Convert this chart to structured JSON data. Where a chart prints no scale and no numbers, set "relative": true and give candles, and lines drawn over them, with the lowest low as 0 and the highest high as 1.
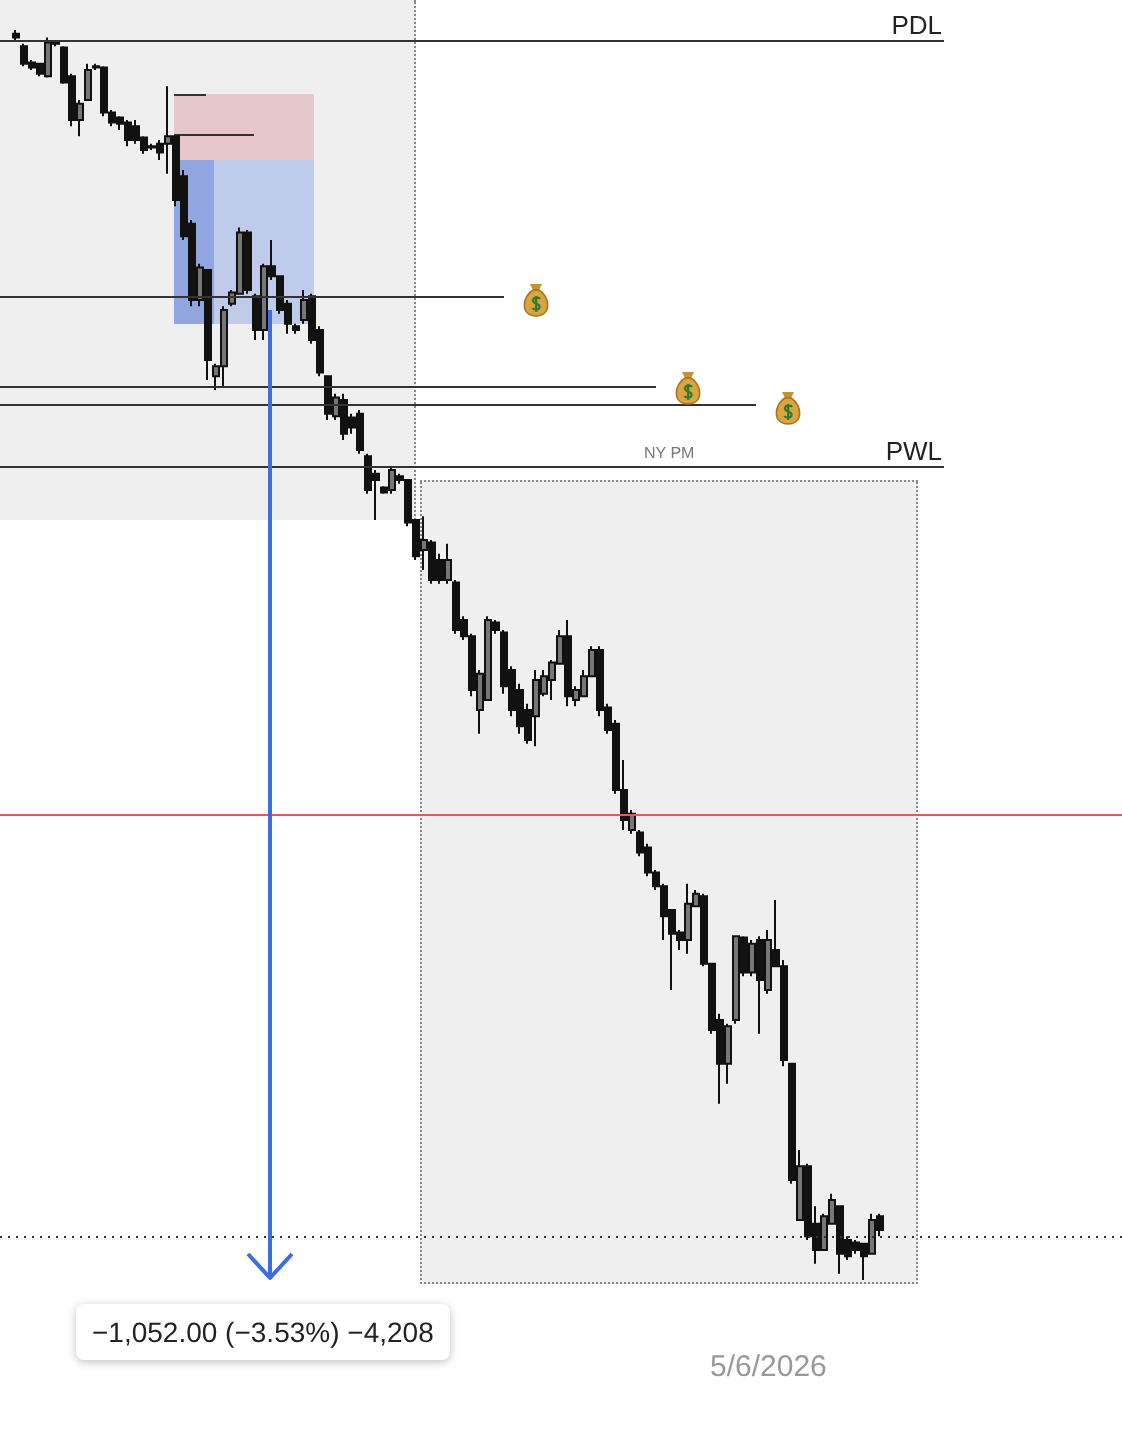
{
  "chart_data": {
    "type": "candlestick",
    "relative": true,
    "categories": [
      null,
      null,
      null,
      null,
      null,
      null,
      null,
      null,
      null,
      null,
      null,
      null,
      null,
      null,
      null,
      null,
      null,
      null,
      null,
      null,
      null,
      null,
      null,
      null,
      null,
      null,
      null,
      null,
      null,
      null,
      null,
      null,
      null,
      null,
      null,
      null,
      null,
      null,
      null,
      null,
      null,
      null,
      null,
      null,
      null,
      null,
      null,
      null,
      null,
      null,
      null,
      null,
      null,
      null,
      null,
      null,
      null,
      null,
      null,
      null,
      null,
      null,
      null,
      null,
      null,
      null,
      null,
      null,
      null,
      null,
      null,
      null,
      null,
      null,
      null,
      null,
      null,
      null,
      null,
      null,
      null,
      null,
      null,
      null,
      null,
      null,
      null,
      null,
      null,
      null,
      null,
      null,
      null,
      null,
      null,
      null,
      null,
      null,
      null,
      null,
      null,
      null,
      null,
      null,
      null,
      null,
      null,
      null,
      null
    ],
    "ohlc": [
      [
        0.997,
        1,
        0.992,
        0.994
      ],
      [
        0.987,
        0.989,
        0.971,
        0.973
      ],
      [
        0.974,
        0.976,
        0.968,
        0.97
      ],
      [
        0.973,
        0.973,
        0.963,
        0.965
      ],
      [
        0.963,
        0.994,
        0.962,
        0.99
      ],
      [
        0.99,
        0.992,
        0.987,
        0.989
      ],
      [
        0.986,
        0.987,
        0.957,
        0.958
      ],
      [
        0.963,
        0.965,
        0.923,
        0.928
      ],
      [
        0.928,
        0.944,
        0.915,
        0.941
      ],
      [
        0.944,
        0.973,
        0.944,
        0.968
      ],
      [
        0.971,
        0.973,
        0.968,
        0.97
      ],
      [
        0.97,
        0.971,
        0.931,
        0.934
      ],
      [
        0.934,
        0.936,
        0.923,
        0.926
      ],
      [
        0.93,
        0.931,
        0.92,
        0.925
      ],
      [
        0.926,
        0.928,
        0.907,
        0.912
      ],
      [
        0.923,
        0.928,
        0.909,
        0.912
      ],
      [
        0.914,
        0.915,
        0.901,
        0.904
      ],
      [
        0.907,
        0.909,
        0.904,
        0.906
      ],
      [
        0.909,
        0.912,
        0.896,
        0.902
      ],
      [
        0.909,
        0.955,
        0.885,
        0.915
      ],
      [
        0.915,
        0.915,
        0.859,
        0.864
      ],
      [
        0.883,
        0.888,
        0.832,
        0.835
      ],
      [
        0.845,
        0.848,
        0.779,
        0.784
      ],
      [
        0.784,
        0.813,
        0.779,
        0.81
      ],
      [
        0.808,
        0.808,
        0.72,
        0.736
      ],
      [
        0.723,
        0.733,
        0.712,
        0.731
      ],
      [
        0.731,
        0.779,
        0.715,
        0.776
      ],
      [
        0.781,
        0.792,
        0.779,
        0.79
      ],
      [
        0.789,
        0.842,
        0.789,
        0.838
      ],
      [
        0.838,
        0.84,
        0.789,
        0.792
      ],
      [
        0.787,
        0.789,
        0.752,
        0.76
      ],
      [
        0.76,
        0.813,
        0.752,
        0.811
      ],
      [
        0.811,
        0.832,
        0.8,
        0.803
      ],
      [
        0.803,
        0.803,
        0.773,
        0.776
      ],
      [
        0.781,
        0.784,
        0.757,
        0.765
      ],
      [
        0.763,
        0.765,
        0.757,
        0.76
      ],
      [
        0.768,
        0.792,
        0.765,
        0.784
      ],
      [
        0.787,
        0.789,
        0.749,
        0.752
      ],
      [
        0.76,
        0.763,
        0.723,
        0.726
      ],
      [
        0.723,
        0.723,
        0.688,
        0.693
      ],
      [
        0.691,
        0.709,
        0.688,
        0.706
      ],
      [
        0.704,
        0.709,
        0.672,
        0.677
      ],
      [
        0.69,
        0.693,
        0.677,
        0.682
      ],
      [
        0.693,
        0.696,
        0.661,
        0.664
      ],
      [
        0.659,
        0.661,
        0.629,
        0.632
      ],
      [
        0.645,
        0.648,
        0.608,
        0.64
      ],
      [
        0.634,
        0.635,
        0.629,
        0.63
      ],
      [
        0.632,
        0.651,
        0.629,
        0.648
      ],
      [
        0.643,
        0.645,
        0.637,
        0.64
      ],
      [
        0.64,
        0.64,
        0.603,
        0.606
      ],
      [
        0.608,
        0.608,
        0.576,
        0.579
      ],
      [
        0.584,
        0.611,
        0.568,
        0.592
      ],
      [
        0.59,
        0.592,
        0.557,
        0.56
      ],
      [
        0.576,
        0.581,
        0.557,
        0.56
      ],
      [
        0.56,
        0.589,
        0.557,
        0.576
      ],
      [
        0.558,
        0.56,
        0.517,
        0.52
      ],
      [
        0.528,
        0.531,
        0.512,
        0.515
      ],
      [
        0.515,
        0.517,
        0.467,
        0.472
      ],
      [
        0.456,
        0.488,
        0.437,
        0.485
      ],
      [
        0.464,
        0.531,
        0.464,
        0.528
      ],
      [
        0.526,
        0.528,
        0.517,
        0.52
      ],
      [
        0.518,
        0.52,
        0.469,
        0.475
      ],
      [
        0.488,
        0.491,
        0.451,
        0.456
      ],
      [
        0.472,
        0.477,
        0.437,
        0.443
      ],
      [
        0.456,
        0.461,
        0.429,
        0.432
      ],
      [
        0.451,
        0.488,
        0.427,
        0.48
      ],
      [
        0.469,
        0.488,
        0.467,
        0.483
      ],
      [
        0.48,
        0.496,
        0.464,
        0.494
      ],
      [
        0.493,
        0.52,
        0.493,
        0.515
      ],
      [
        0.515,
        0.528,
        0.459,
        0.467
      ],
      [
        0.464,
        0.475,
        0.459,
        0.472
      ],
      [
        0.467,
        0.488,
        0.467,
        0.483
      ],
      [
        0.483,
        0.507,
        0.483,
        0.504
      ],
      [
        0.504,
        0.507,
        0.451,
        0.456
      ],
      [
        0.458,
        0.461,
        0.437,
        0.44
      ],
      [
        0.445,
        0.448,
        0.389,
        0.392
      ],
      [
        0.392,
        0.416,
        0.36,
        0.368
      ],
      [
        0.36,
        0.376,
        0.357,
        0.373
      ],
      [
        0.358,
        0.36,
        0.339,
        0.342
      ],
      [
        0.346,
        0.349,
        0.323,
        0.326
      ],
      [
        0.326,
        0.328,
        0.312,
        0.315
      ],
      [
        0.315,
        0.317,
        0.272,
        0.291
      ],
      [
        0.296,
        0.296,
        0.232,
        0.277
      ],
      [
        0.278,
        0.28,
        0.264,
        0.272
      ],
      [
        0.272,
        0.317,
        0.261,
        0.301
      ],
      [
        0.299,
        0.312,
        0.299,
        0.309
      ],
      [
        0.307,
        0.309,
        0.251,
        0.253
      ],
      [
        0.253,
        0.253,
        0.197,
        0.2
      ],
      [
        0.208,
        0.213,
        0.141,
        0.173
      ],
      [
        0.173,
        0.205,
        0.157,
        0.203
      ],
      [
        0.208,
        0.275,
        0.205,
        0.275
      ],
      [
        0.274,
        0.275,
        0.243,
        0.246
      ],
      [
        0.246,
        0.272,
        0.243,
        0.269
      ],
      [
        0.272,
        0.275,
        0.197,
        0.24
      ],
      [
        0.232,
        0.28,
        0.229,
        0.272
      ],
      [
        0.264,
        0.304,
        0.251,
        0.251
      ],
      [
        0.251,
        0.256,
        0.171,
        0.176
      ],
      [
        0.173,
        0.173,
        0.077,
        0.08
      ],
      [
        0.048,
        0.104,
        0.048,
        0.091
      ],
      [
        0.091,
        0.093,
        0.032,
        0.035
      ],
      [
        0.045,
        0.059,
        0.013,
        0.024
      ],
      [
        0.024,
        0.053,
        0.024,
        0.051
      ],
      [
        0.045,
        0.069,
        0.045,
        0.064
      ],
      [
        0.059,
        0.059,
        0.005,
        0.021
      ],
      [
        0.032,
        0.035,
        0.016,
        0.019
      ],
      [
        0.03,
        0.032,
        0.021,
        0.024
      ],
      [
        0.029,
        0.029,
        0,
        0.019
      ],
      [
        0.021,
        0.053,
        0.021,
        0.048
      ],
      [
        0.051,
        0.053,
        0.035,
        0.04
      ]
    ],
    "ref_lines": [
      {
        "axis": "y",
        "value": 0.992,
        "label": "PDL",
        "color": "#333333"
      },
      {
        "axis": "y",
        "value": 0.786,
        "color": "#333333"
      },
      {
        "axis": "y",
        "value": 0.715,
        "color": "#333333"
      },
      {
        "axis": "y",
        "value": 0.701,
        "color": "#333333"
      },
      {
        "axis": "y",
        "value": 0.651,
        "label": "PWL",
        "color": "#333333"
      },
      {
        "axis": "y",
        "value": 0.373,
        "color": "#e05a5a"
      },
      {
        "axis": "y",
        "value": 0.035,
        "color": "#333333",
        "line_style": "dotted"
      }
    ],
    "annotations": [
      "NY PM",
      "−1,052.00 (−3.53%) −4,208",
      "5/6/2026"
    ]
  }
}
